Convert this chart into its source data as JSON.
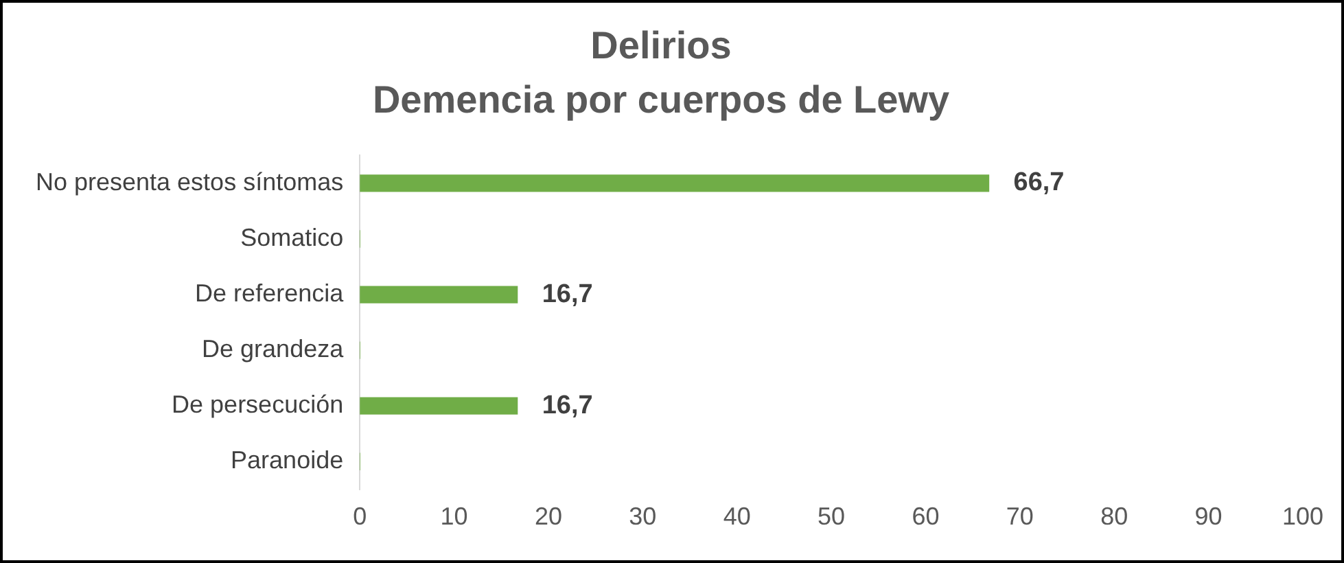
{
  "chart_data": {
    "type": "bar",
    "orientation": "horizontal",
    "title": "Delirios",
    "subtitle": "Demencia por cuerpos de Lewy",
    "categories": [
      "No presenta estos síntomas",
      "Somatico",
      "De referencia",
      "De grandeza",
      "De persecución",
      "Paranoide"
    ],
    "values": [
      66.7,
      0,
      16.7,
      0,
      16.7,
      0
    ],
    "value_labels": [
      "66,7",
      null,
      "16,7",
      null,
      "16,7",
      null
    ],
    "color": "#70ad47",
    "xlim": [
      0,
      100
    ],
    "xticks": [
      0,
      10,
      20,
      30,
      40,
      50,
      60,
      70,
      80,
      90,
      100
    ],
    "grid": false,
    "legend": false
  }
}
